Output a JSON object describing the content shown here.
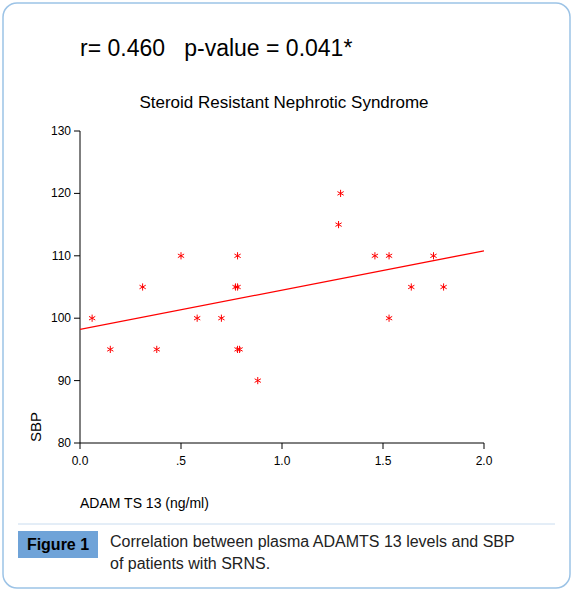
{
  "chart_data": {
    "type": "scatter",
    "annotations": [
      "r= 0.460   p-value = 0.041*"
    ],
    "title": "Steroid Resistant Nephrotic Syndrome",
    "x_label": "ADAM TS 13 (ng/ml)",
    "y_label": "SBP",
    "figure_label": "Figure 1",
    "caption": [
      "Correlation between plasma ADAMTS 13 levels and SBP",
      "of patients with SRNS."
    ],
    "xlim": [
      0,
      2
    ],
    "ylim": [
      80,
      130
    ],
    "xticks": [
      {
        "value": 0,
        "label": "0.0"
      },
      {
        "value": 0.5,
        "label": ".5"
      },
      {
        "value": 1,
        "label": "1.0"
      },
      1.5,
      {
        "value": 2,
        "label": "2.0"
      }
    ],
    "yticks": [
      80,
      90,
      100,
      110,
      120,
      130
    ],
    "grid": false,
    "series": [
      {
        "type": "scatter",
        "color": "#ff0000",
        "marker": "asterisk",
        "x": [
          0.06,
          0.15,
          0.31,
          0.38,
          0.5,
          0.58,
          0.7,
          0.77,
          0.78,
          0.78,
          0.78,
          0.79,
          0.88,
          1.28,
          1.29,
          1.46,
          1.53,
          1.53,
          1.64,
          1.75,
          1.8
        ],
        "values": [
          100,
          95,
          105,
          95,
          110,
          100,
          100,
          105,
          105,
          110,
          95,
          95,
          90,
          115,
          120,
          110,
          110,
          100,
          105,
          110,
          105
        ]
      },
      {
        "type": "line",
        "color": "#ff0000",
        "line_style": "solid",
        "x": [
          0,
          2
        ],
        "values": [
          98.2,
          110.8
        ]
      }
    ]
  }
}
